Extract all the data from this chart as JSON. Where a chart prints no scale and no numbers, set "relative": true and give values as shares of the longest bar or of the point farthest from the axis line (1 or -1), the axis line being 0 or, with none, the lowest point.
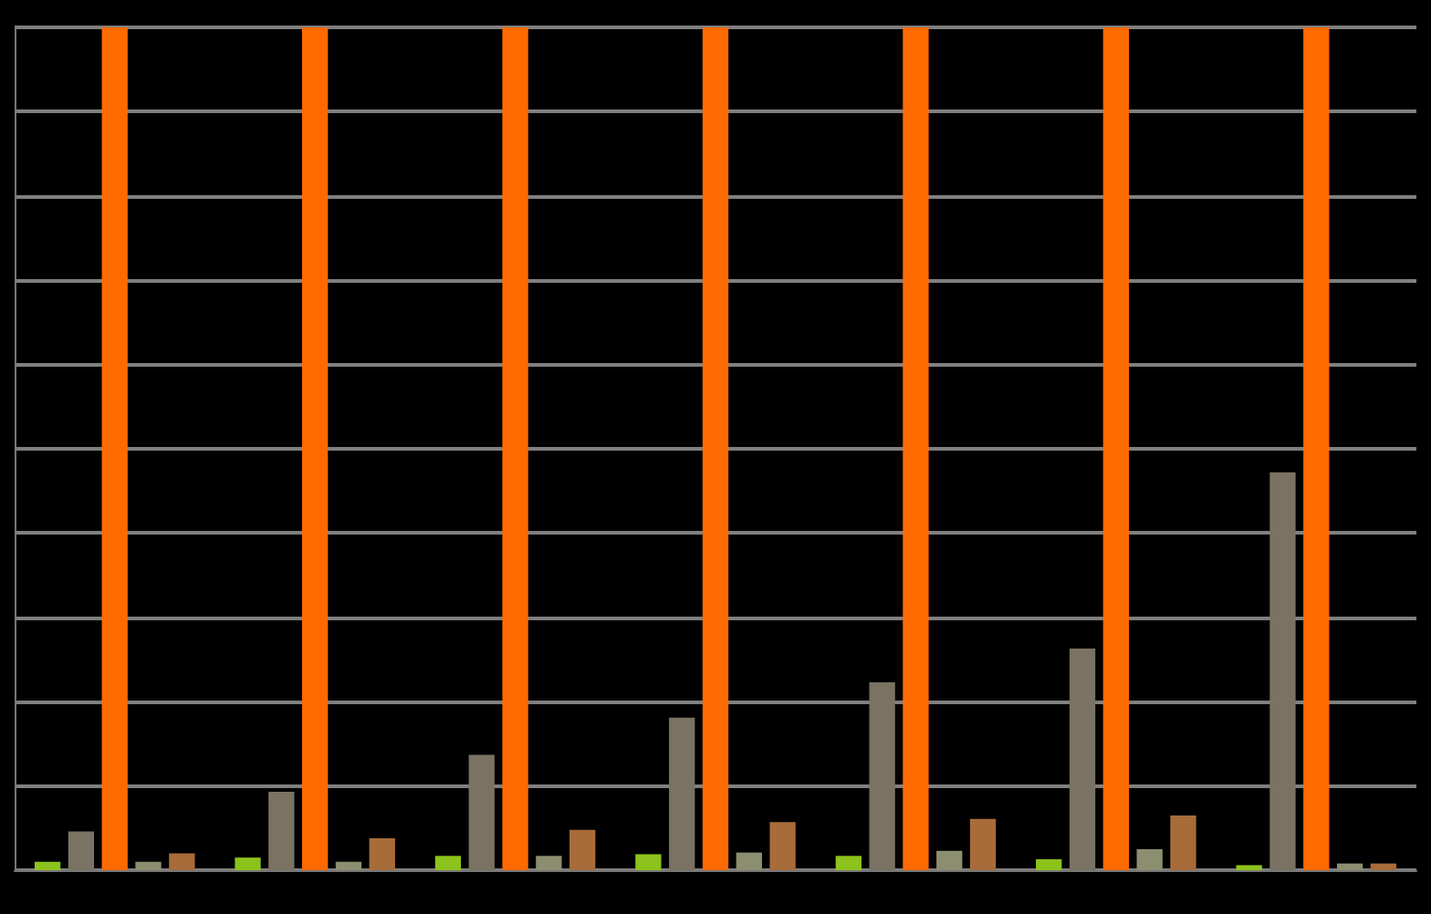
{
  "chart_data": {
    "type": "bar",
    "relative": true,
    "grid": "y",
    "categories": [
      null,
      null,
      null,
      null,
      null,
      null,
      null
    ],
    "series": [
      {
        "color": "#8cc21c",
        "values": [
          0.01,
          0.015,
          0.017,
          0.019,
          0.017,
          0.013,
          0.006
        ]
      },
      {
        "color": "#7a7262",
        "values": [
          0.046,
          0.093,
          0.137,
          0.181,
          0.223,
          0.263,
          0.472
        ]
      },
      {
        "color": "#ff6a00",
        "values": [
          1,
          1,
          1,
          1,
          1,
          1,
          1
        ]
      },
      {
        "color": "#8c8e70",
        "values": [
          0.01,
          0.01,
          0.017,
          0.021,
          0.023,
          0.025,
          0.008
        ]
      },
      {
        "color": "#a86c3a",
        "values": [
          0.02,
          0.038,
          0.048,
          0.057,
          0.061,
          0.065,
          0.008
        ]
      }
    ]
  }
}
